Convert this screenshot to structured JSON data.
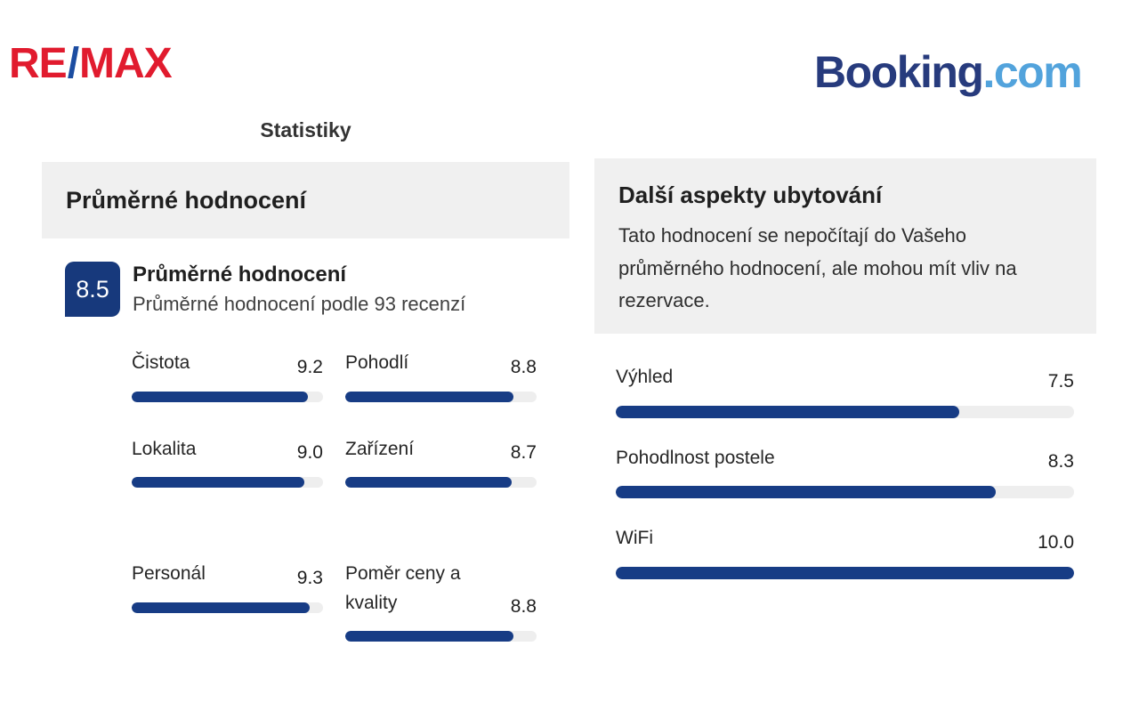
{
  "logos": {
    "remax": {
      "part1": "RE",
      "slash": "/",
      "part2": "MAX"
    },
    "booking": {
      "part1": "Booking",
      "part2": ".com"
    }
  },
  "page_title": "Statistiky",
  "left_panel": {
    "header": "Průměrné hodnocení",
    "overall": {
      "score": "8.5",
      "title": "Průměrné hodnocení",
      "subtitle": "Průměrné hodnocení podle 93 recenzí"
    },
    "categories": [
      {
        "label": "Čistota",
        "score": "9.2",
        "value": 9.2
      },
      {
        "label": "Pohodlí",
        "score": "8.8",
        "value": 8.8
      },
      {
        "label": "Lokalita",
        "score": "9.0",
        "value": 9.0
      },
      {
        "label": "Zařízení",
        "score": "8.7",
        "value": 8.7
      },
      {
        "label": "Personál",
        "score": "9.3",
        "value": 9.3
      },
      {
        "label": "Poměr ceny a kvality",
        "score": "8.8",
        "value": 8.8
      }
    ]
  },
  "right_panel": {
    "header": "Další aspekty ubytování",
    "description": "Tato hodnocení se nepočítají do Vašeho průměrného hodnocení, ale mohou mít vliv na rezervace.",
    "aspects": [
      {
        "label": "Výhled",
        "score": "7.5",
        "value": 7.5
      },
      {
        "label": "Pohodlnost postele",
        "score": "8.3",
        "value": 8.3
      },
      {
        "label": "WiFi",
        "score": "10.0",
        "value": 10.0
      }
    ]
  },
  "colors": {
    "bar_fill": "#173c85",
    "bar_track": "#eeeeee",
    "panel_bg": "#f0f0f0",
    "badge_bg": "#17397c",
    "remax_red": "#e11b2e",
    "remax_blue": "#1c4da1",
    "booking_navy": "#273b7d",
    "booking_light_blue": "#52a3dc"
  }
}
